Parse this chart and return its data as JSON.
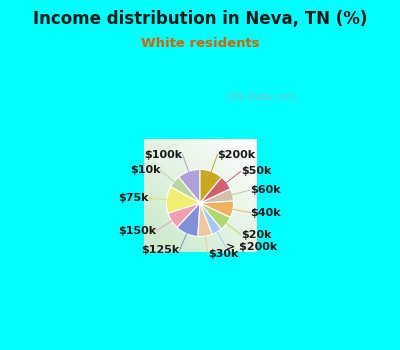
{
  "title": "Income distribution in Neva, TN (%)",
  "subtitle": "White residents",
  "title_color": "#1a1a1a",
  "subtitle_color": "#cc6600",
  "background_color": "#00ffff",
  "watermark": "City-Data.com",
  "labels": [
    "$100k",
    "$10k",
    "$75k",
    "$150k",
    "$125k",
    "$30k",
    "> $200k",
    "$20k",
    "$40k",
    "$60k",
    "$50k",
    "$200k"
  ],
  "values": [
    11,
    6,
    13,
    8,
    11,
    7,
    5,
    7,
    8,
    6,
    7,
    11
  ],
  "colors": [
    "#b0a0d8",
    "#b8d8a0",
    "#f0f070",
    "#f0a0b0",
    "#8090d8",
    "#f0c8a0",
    "#a0c8f0",
    "#b0d870",
    "#f0b060",
    "#d0c0a8",
    "#d06070",
    "#c8a820"
  ],
  "line_colors": [
    "#b0a0d8",
    "#b8d8a0",
    "#e8e060",
    "#f0a0b0",
    "#8090d8",
    "#f0c8a0",
    "#a0c8f0",
    "#b0d870",
    "#f0b060",
    "#d0c0a8",
    "#d06070",
    "#c8a820"
  ],
  "label_fontsize": 8,
  "title_fontsize": 12,
  "subtitle_fontsize": 9.5,
  "startangle": 90
}
